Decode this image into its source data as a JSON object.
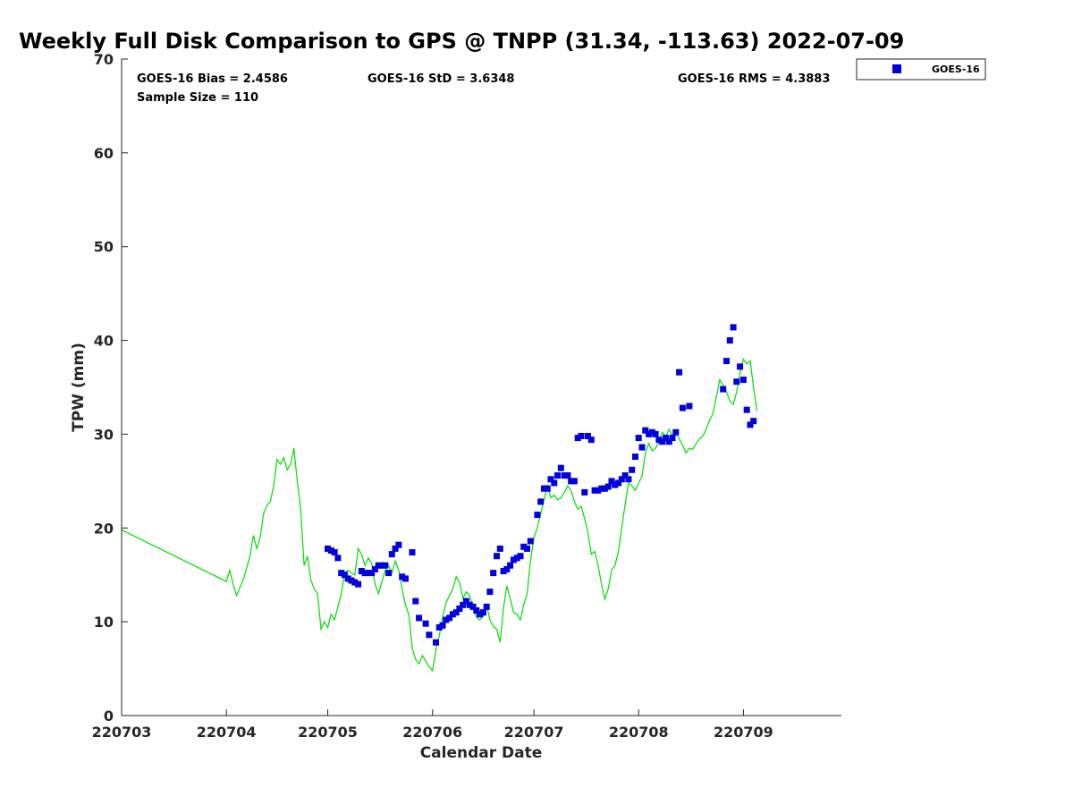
{
  "chart_data": {
    "type": "scatter",
    "title": "Weekly Full Disk Comparison to GPS @ TNPP (31.34, -113.63) 2022-07-09",
    "xlabel": "Calendar Date",
    "ylabel": "TPW (mm)",
    "xlim": [
      "2022-03-01",
      "2022-09-30"
    ],
    "ylim": [
      0,
      70
    ],
    "y_ticks": [
      0,
      10,
      20,
      30,
      40,
      50,
      60,
      70
    ],
    "x_ticks": [
      {
        "date": "2022-03-01",
        "label": "220703"
      },
      {
        "date": "2022-04-01",
        "label": "220704"
      },
      {
        "date": "2022-05-01",
        "label": "220705"
      },
      {
        "date": "2022-06-01",
        "label": "220706"
      },
      {
        "date": "2022-07-01",
        "label": "220707"
      },
      {
        "date": "2022-08-01",
        "label": "220708"
      },
      {
        "date": "2022-09-01",
        "label": "220709"
      }
    ],
    "grid": false,
    "legend_position": "top-right",
    "stats": {
      "bias": "GOES-16 Bias = 2.4586",
      "std": "GOES-16 StD = 3.6348",
      "rms": "GOES-16 RMS = 4.3883",
      "sample": "Sample Size = 110"
    },
    "series": [
      {
        "name": "GOES-16",
        "kind": "scatter",
        "color": "#0000dd",
        "marker": "square",
        "points": [
          [
            "2022-05-01",
            17.8
          ],
          [
            "2022-05-02",
            17.6
          ],
          [
            "2022-05-03",
            17.4
          ],
          [
            "2022-05-04",
            16.8
          ],
          [
            "2022-05-05",
            15.2
          ],
          [
            "2022-05-06",
            15.0
          ],
          [
            "2022-05-07",
            14.6
          ],
          [
            "2022-05-08",
            14.4
          ],
          [
            "2022-05-09",
            14.2
          ],
          [
            "2022-05-10",
            14.0
          ],
          [
            "2022-05-11",
            15.4
          ],
          [
            "2022-05-12",
            15.2
          ],
          [
            "2022-05-13",
            15.2
          ],
          [
            "2022-05-14",
            15.2
          ],
          [
            "2022-05-15",
            15.6
          ],
          [
            "2022-05-16",
            16.0
          ],
          [
            "2022-05-17",
            16.0
          ],
          [
            "2022-05-18",
            16.0
          ],
          [
            "2022-05-19",
            15.2
          ],
          [
            "2022-05-20",
            17.2
          ],
          [
            "2022-05-21",
            17.8
          ],
          [
            "2022-05-22",
            18.2
          ],
          [
            "2022-05-23",
            14.8
          ],
          [
            "2022-05-24",
            14.6
          ],
          [
            "2022-05-26",
            17.4
          ],
          [
            "2022-05-27",
            12.2
          ],
          [
            "2022-05-28",
            10.4
          ],
          [
            "2022-05-30",
            9.8
          ],
          [
            "2022-05-31",
            8.6
          ],
          [
            "2022-06-02",
            7.8
          ],
          [
            "2022-06-03",
            9.4
          ],
          [
            "2022-06-04",
            9.6
          ],
          [
            "2022-06-05",
            10.2
          ],
          [
            "2022-06-06",
            10.4
          ],
          [
            "2022-06-07",
            10.8
          ],
          [
            "2022-06-08",
            11.0
          ],
          [
            "2022-06-09",
            11.4
          ],
          [
            "2022-06-10",
            11.8
          ],
          [
            "2022-06-11",
            12.2
          ],
          [
            "2022-06-12",
            11.8
          ],
          [
            "2022-06-13",
            11.6
          ],
          [
            "2022-06-14",
            11.2
          ],
          [
            "2022-06-15",
            10.8
          ],
          [
            "2022-06-16",
            11.0
          ],
          [
            "2022-06-17",
            11.6
          ],
          [
            "2022-06-18",
            13.2
          ],
          [
            "2022-06-19",
            15.2
          ],
          [
            "2022-06-20",
            17.0
          ],
          [
            "2022-06-21",
            17.8
          ],
          [
            "2022-06-22",
            15.4
          ],
          [
            "2022-06-23",
            15.6
          ],
          [
            "2022-06-24",
            16.0
          ],
          [
            "2022-06-25",
            16.6
          ],
          [
            "2022-06-26",
            16.8
          ],
          [
            "2022-06-27",
            17.0
          ],
          [
            "2022-06-28",
            18.0
          ],
          [
            "2022-06-29",
            17.8
          ],
          [
            "2022-06-30",
            18.6
          ],
          [
            "2022-07-02",
            21.4
          ],
          [
            "2022-07-03",
            22.8
          ],
          [
            "2022-07-04",
            24.2
          ],
          [
            "2022-07-05",
            24.2
          ],
          [
            "2022-07-06",
            25.2
          ],
          [
            "2022-07-07",
            24.8
          ],
          [
            "2022-07-08",
            25.6
          ],
          [
            "2022-07-09",
            26.4
          ],
          [
            "2022-07-10",
            25.6
          ],
          [
            "2022-07-11",
            25.6
          ],
          [
            "2022-07-12",
            25.0
          ],
          [
            "2022-07-13",
            25.0
          ],
          [
            "2022-07-14",
            29.6
          ],
          [
            "2022-07-15",
            29.8
          ],
          [
            "2022-07-16",
            23.8
          ],
          [
            "2022-07-17",
            29.8
          ],
          [
            "2022-07-18",
            29.4
          ],
          [
            "2022-07-19",
            24.0
          ],
          [
            "2022-07-20",
            24.0
          ],
          [
            "2022-07-21",
            24.2
          ],
          [
            "2022-07-22",
            24.2
          ],
          [
            "2022-07-23",
            24.4
          ],
          [
            "2022-07-24",
            25.0
          ],
          [
            "2022-07-25",
            24.6
          ],
          [
            "2022-07-26",
            24.8
          ],
          [
            "2022-07-27",
            25.2
          ],
          [
            "2022-07-28",
            25.6
          ],
          [
            "2022-07-29",
            25.2
          ],
          [
            "2022-07-30",
            26.2
          ],
          [
            "2022-07-31",
            27.6
          ],
          [
            "2022-08-01",
            29.6
          ],
          [
            "2022-08-02",
            28.6
          ],
          [
            "2022-08-03",
            30.4
          ],
          [
            "2022-08-04",
            30.0
          ],
          [
            "2022-08-05",
            30.2
          ],
          [
            "2022-08-06",
            30.0
          ],
          [
            "2022-08-07",
            29.4
          ],
          [
            "2022-08-08",
            29.2
          ],
          [
            "2022-08-09",
            29.6
          ],
          [
            "2022-08-10",
            29.2
          ],
          [
            "2022-08-11",
            29.6
          ],
          [
            "2022-08-12",
            30.2
          ],
          [
            "2022-08-13",
            36.6
          ],
          [
            "2022-08-14",
            32.8
          ],
          [
            "2022-08-16",
            33.0
          ],
          [
            "2022-08-26",
            34.8
          ],
          [
            "2022-08-27",
            37.8
          ],
          [
            "2022-08-28",
            40.0
          ],
          [
            "2022-08-29",
            41.4
          ],
          [
            "2022-08-30",
            35.6
          ],
          [
            "2022-08-31",
            37.2
          ],
          [
            "2022-09-01",
            35.8
          ],
          [
            "2022-09-02",
            32.6
          ],
          [
            "2022-09-03",
            31.0
          ],
          [
            "2022-09-04",
            31.4
          ]
        ]
      },
      {
        "kind": "line",
        "color": "#00dd00",
        "points": [
          [
            "2022-03-01",
            19.8
          ],
          [
            "2022-04-01",
            14.3
          ],
          [
            "2022-04-02",
            15.5
          ],
          [
            "2022-04-03",
            14.0
          ],
          [
            "2022-04-04",
            12.8
          ],
          [
            "2022-04-06",
            14.5
          ],
          [
            "2022-04-08",
            17.0
          ],
          [
            "2022-04-09",
            19.2
          ],
          [
            "2022-04-10",
            17.8
          ],
          [
            "2022-04-11",
            19.0
          ],
          [
            "2022-04-12",
            21.5
          ],
          [
            "2022-04-13",
            22.4
          ],
          [
            "2022-04-14",
            22.8
          ],
          [
            "2022-04-15",
            24.5
          ],
          [
            "2022-04-16",
            27.3
          ],
          [
            "2022-04-17",
            26.8
          ],
          [
            "2022-04-18",
            27.5
          ],
          [
            "2022-04-19",
            26.2
          ],
          [
            "2022-04-20",
            26.8
          ],
          [
            "2022-04-21",
            28.5
          ],
          [
            "2022-04-22",
            25.0
          ],
          [
            "2022-04-23",
            22.0
          ],
          [
            "2022-04-24",
            16.0
          ],
          [
            "2022-04-25",
            17.0
          ],
          [
            "2022-04-26",
            14.5
          ],
          [
            "2022-04-27",
            13.5
          ],
          [
            "2022-04-28",
            13.0
          ],
          [
            "2022-04-29",
            9.2
          ],
          [
            "2022-04-30",
            10.0
          ],
          [
            "2022-05-01",
            9.4
          ],
          [
            "2022-05-02",
            10.8
          ],
          [
            "2022-05-03",
            10.2
          ],
          [
            "2022-05-04",
            11.6
          ],
          [
            "2022-05-05",
            13.0
          ],
          [
            "2022-05-06",
            15.2
          ],
          [
            "2022-05-07",
            15.5
          ],
          [
            "2022-05-08",
            15.2
          ],
          [
            "2022-05-09",
            15.0
          ],
          [
            "2022-05-10",
            17.8
          ],
          [
            "2022-05-11",
            17.2
          ],
          [
            "2022-05-12",
            16.0
          ],
          [
            "2022-05-13",
            16.8
          ],
          [
            "2022-05-14",
            16.2
          ],
          [
            "2022-05-15",
            14.0
          ],
          [
            "2022-05-16",
            13.0
          ],
          [
            "2022-05-17",
            14.2
          ],
          [
            "2022-05-18",
            15.5
          ],
          [
            "2022-05-19",
            16.0
          ],
          [
            "2022-05-20",
            15.2
          ],
          [
            "2022-05-21",
            16.5
          ],
          [
            "2022-05-22",
            15.5
          ],
          [
            "2022-05-23",
            13.5
          ],
          [
            "2022-05-24",
            11.8
          ],
          [
            "2022-05-25",
            10.8
          ],
          [
            "2022-05-26",
            7.2
          ],
          [
            "2022-05-27",
            6.0
          ],
          [
            "2022-05-28",
            5.5
          ],
          [
            "2022-05-29",
            6.4
          ],
          [
            "2022-05-30",
            5.8
          ],
          [
            "2022-05-31",
            5.2
          ],
          [
            "2022-06-01",
            4.8
          ],
          [
            "2022-06-02",
            7.0
          ],
          [
            "2022-06-03",
            8.5
          ],
          [
            "2022-06-04",
            10.5
          ],
          [
            "2022-06-05",
            12.0
          ],
          [
            "2022-06-06",
            12.8
          ],
          [
            "2022-06-07",
            13.5
          ],
          [
            "2022-06-08",
            14.8
          ],
          [
            "2022-06-09",
            14.2
          ],
          [
            "2022-06-10",
            12.5
          ],
          [
            "2022-06-11",
            13.2
          ],
          [
            "2022-06-12",
            12.8
          ],
          [
            "2022-06-13",
            11.5
          ],
          [
            "2022-06-14",
            10.5
          ],
          [
            "2022-06-15",
            10.2
          ],
          [
            "2022-06-16",
            10.6
          ],
          [
            "2022-06-17",
            11.8
          ],
          [
            "2022-06-18",
            10.2
          ],
          [
            "2022-06-19",
            9.5
          ],
          [
            "2022-06-20",
            9.2
          ],
          [
            "2022-06-21",
            7.8
          ],
          [
            "2022-06-22",
            11.5
          ],
          [
            "2022-06-23",
            13.8
          ],
          [
            "2022-06-24",
            12.5
          ],
          [
            "2022-06-25",
            11.0
          ],
          [
            "2022-06-26",
            10.8
          ],
          [
            "2022-06-27",
            10.2
          ],
          [
            "2022-06-28",
            11.8
          ],
          [
            "2022-06-29",
            13.0
          ],
          [
            "2022-06-30",
            16.5
          ],
          [
            "2022-07-01",
            19.0
          ],
          [
            "2022-07-02",
            20.0
          ],
          [
            "2022-07-03",
            21.5
          ],
          [
            "2022-07-04",
            23.0
          ],
          [
            "2022-07-05",
            24.5
          ],
          [
            "2022-07-06",
            23.2
          ],
          [
            "2022-07-07",
            23.5
          ],
          [
            "2022-07-08",
            23.0
          ],
          [
            "2022-07-09",
            23.2
          ],
          [
            "2022-07-10",
            23.8
          ],
          [
            "2022-07-11",
            24.5
          ],
          [
            "2022-07-12",
            24.0
          ],
          [
            "2022-07-13",
            22.8
          ],
          [
            "2022-07-14",
            22.0
          ],
          [
            "2022-07-15",
            22.3
          ],
          [
            "2022-07-16",
            21.0
          ],
          [
            "2022-07-17",
            19.5
          ],
          [
            "2022-07-18",
            17.2
          ],
          [
            "2022-07-19",
            17.5
          ],
          [
            "2022-07-20",
            16.0
          ],
          [
            "2022-07-21",
            14.0
          ],
          [
            "2022-07-22",
            12.4
          ],
          [
            "2022-07-23",
            13.5
          ],
          [
            "2022-07-24",
            15.5
          ],
          [
            "2022-07-25",
            16.0
          ],
          [
            "2022-07-26",
            17.5
          ],
          [
            "2022-07-27",
            20.0
          ],
          [
            "2022-07-28",
            22.5
          ],
          [
            "2022-07-29",
            24.8
          ],
          [
            "2022-07-30",
            24.5
          ],
          [
            "2022-07-31",
            24.0
          ],
          [
            "2022-08-01",
            24.8
          ],
          [
            "2022-08-02",
            25.5
          ],
          [
            "2022-08-03",
            28.0
          ],
          [
            "2022-08-04",
            29.0
          ],
          [
            "2022-08-05",
            28.2
          ],
          [
            "2022-08-06",
            28.5
          ],
          [
            "2022-08-07",
            29.2
          ],
          [
            "2022-08-08",
            30.2
          ],
          [
            "2022-08-09",
            29.8
          ],
          [
            "2022-08-10",
            30.5
          ],
          [
            "2022-08-11",
            29.8
          ],
          [
            "2022-08-12",
            30.2
          ],
          [
            "2022-08-13",
            29.5
          ],
          [
            "2022-08-14",
            28.8
          ],
          [
            "2022-08-15",
            28.0
          ],
          [
            "2022-08-16",
            28.5
          ],
          [
            "2022-08-17",
            28.4
          ],
          [
            "2022-08-18",
            29.0
          ],
          [
            "2022-08-19",
            29.5
          ],
          [
            "2022-08-20",
            29.8
          ],
          [
            "2022-08-21",
            30.5
          ],
          [
            "2022-08-22",
            31.5
          ],
          [
            "2022-08-23",
            32.2
          ],
          [
            "2022-08-24",
            34.0
          ],
          [
            "2022-08-25",
            35.8
          ],
          [
            "2022-08-26",
            35.2
          ],
          [
            "2022-08-27",
            34.5
          ],
          [
            "2022-08-28",
            33.5
          ],
          [
            "2022-08-29",
            33.2
          ],
          [
            "2022-08-30",
            34.5
          ],
          [
            "2022-08-31",
            36.5
          ],
          [
            "2022-09-01",
            38.0
          ],
          [
            "2022-09-02",
            37.5
          ],
          [
            "2022-09-03",
            37.8
          ],
          [
            "2022-09-04",
            35.0
          ],
          [
            "2022-09-05",
            32.5
          ]
        ]
      }
    ]
  }
}
